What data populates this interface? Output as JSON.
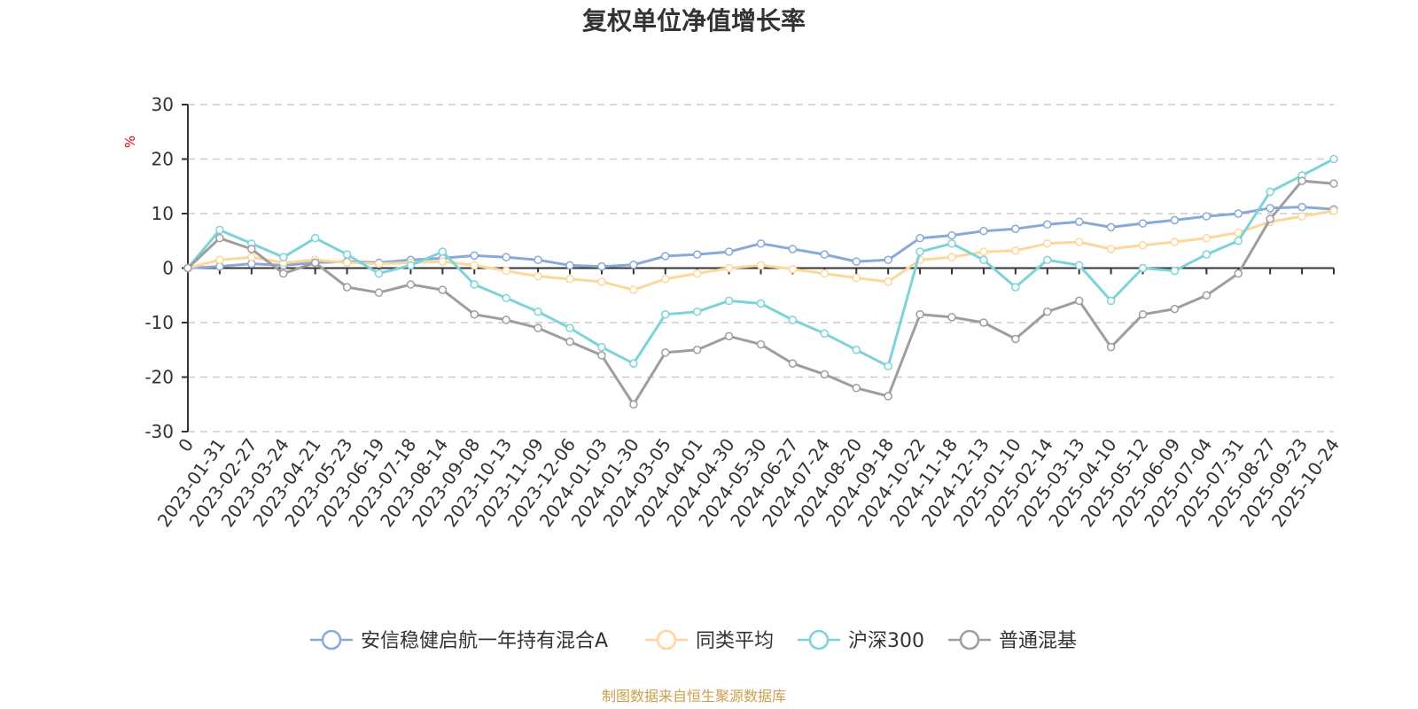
{
  "chart_data": {
    "type": "line",
    "title": "复权单位净值增长率",
    "ylabel": "%",
    "ylim": [
      -30,
      30
    ],
    "yticks": [
      30,
      20,
      10,
      0,
      -10,
      -20,
      -30
    ],
    "x_labels": [
      "0",
      "2023-01-31",
      "2023-02-27",
      "2023-03-24",
      "2023-04-21",
      "2023-05-23",
      "2023-06-19",
      "2023-07-18",
      "2023-08-14",
      "2023-09-08",
      "2023-10-13",
      "2023-11-09",
      "2023-12-06",
      "2024-01-03",
      "2024-01-30",
      "2024-03-05",
      "2024-04-01",
      "2024-04-30",
      "2024-05-30",
      "2024-06-27",
      "2024-07-24",
      "2024-08-20",
      "2024-09-18",
      "2024-10-22",
      "2024-11-18",
      "2024-12-13",
      "2025-01-10",
      "2025-02-14",
      "2025-03-13",
      "2025-04-10",
      "2025-05-12",
      "2025-06-09",
      "2025-07-04",
      "2025-07-31",
      "2025-08-27",
      "2025-09-23",
      "2025-10-24"
    ],
    "series": [
      {
        "name": "安信稳健启航一年持有混合A",
        "color": "#8aa8d8",
        "values": [
          0,
          0.3,
          0.8,
          0.5,
          1.0,
          1.2,
          1.0,
          1.5,
          1.8,
          2.3,
          2.0,
          1.5,
          0.5,
          0.3,
          0.6,
          2.2,
          2.5,
          3.0,
          4.5,
          3.5,
          2.5,
          1.2,
          1.5,
          5.5,
          6.0,
          6.8,
          7.2,
          8.0,
          8.5,
          7.5,
          8.2,
          8.8,
          9.5,
          10.0,
          11.0,
          11.2,
          10.8
        ]
      },
      {
        "name": "同类平均",
        "color": "#fdd79a",
        "values": [
          0,
          1.5,
          2.0,
          1.0,
          1.5,
          1.0,
          0.8,
          1.0,
          1.2,
          0.5,
          -0.5,
          -1.5,
          -2.0,
          -2.5,
          -4.0,
          -2.0,
          -1.0,
          0.0,
          0.5,
          -0.2,
          -1.0,
          -1.8,
          -2.5,
          1.5,
          2.0,
          3.0,
          3.2,
          4.5,
          4.8,
          3.5,
          4.2,
          4.8,
          5.5,
          6.5,
          8.5,
          9.5,
          10.5
        ]
      },
      {
        "name": "沪深300",
        "color": "#7cd3d8",
        "values": [
          0,
          7.0,
          4.5,
          2.0,
          5.5,
          2.5,
          -1.0,
          0.5,
          3.0,
          -3.0,
          -5.5,
          -8.0,
          -11.0,
          -14.5,
          -17.5,
          -8.5,
          -8.0,
          -6.0,
          -6.5,
          -9.5,
          -12.0,
          -15.0,
          -18.0,
          3.0,
          4.5,
          1.5,
          -3.5,
          1.5,
          0.5,
          -6.0,
          0.0,
          -0.5,
          2.5,
          5.0,
          14.0,
          17.0,
          20.0
        ]
      },
      {
        "name": "普通混基",
        "color": "#9e9e9e",
        "values": [
          0,
          5.5,
          3.5,
          -1.0,
          1.0,
          -3.5,
          -4.5,
          -3.0,
          -4.0,
          -8.5,
          -9.5,
          -11.0,
          -13.5,
          -16.0,
          -25.0,
          -15.5,
          -15.0,
          -12.5,
          -14.0,
          -17.5,
          -19.5,
          -22.0,
          -23.5,
          -8.5,
          -9.0,
          -10.0,
          -13.0,
          -8.0,
          -6.0,
          -14.5,
          -8.5,
          -7.5,
          -5.0,
          -1.0,
          9.0,
          16.0,
          15.5
        ]
      }
    ]
  },
  "legend": {
    "items": [
      "安信稳健启航一年持有混合A",
      "同类平均",
      "沪深300",
      "普通混基"
    ]
  },
  "footer": {
    "source": "制图数据来自恒生聚源数据库"
  }
}
